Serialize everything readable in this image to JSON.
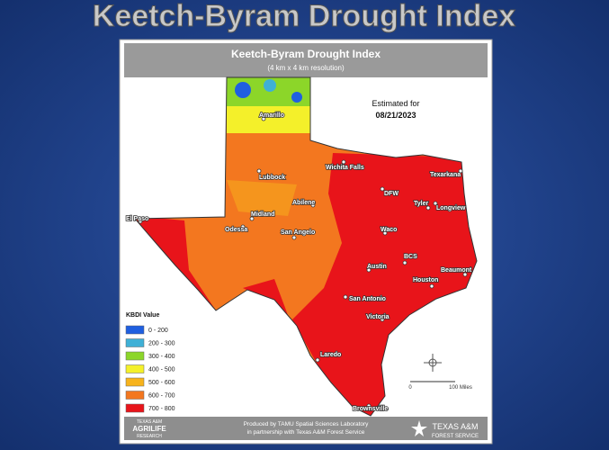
{
  "slide_title": "Keetch-Byram Drought Index",
  "map": {
    "title": "Keetch-Byram Drought Index",
    "subtitle": "(4 km x 4 km resolution)",
    "estimated_label": "Estimated for",
    "date": "08/21/2023",
    "cities": [
      "Amarillo",
      "Wichita Falls",
      "Texarkana",
      "Lubbock",
      "DFW",
      "Tyler",
      "Longview",
      "Abilene",
      "El Paso",
      "Midland",
      "Odessa",
      "San Angelo",
      "Waco",
      "BCS",
      "Austin",
      "Beaumont",
      "Houston",
      "San Antonio",
      "Victoria",
      "Laredo",
      "Brownsville"
    ],
    "legend": {
      "title": "KBDI Value",
      "items": [
        {
          "label": "0 - 200",
          "color": "#1f5fe0"
        },
        {
          "label": "200 - 300",
          "color": "#3fb0d6"
        },
        {
          "label": "300 - 400",
          "color": "#8cd629"
        },
        {
          "label": "400 - 500",
          "color": "#f4f02a"
        },
        {
          "label": "500 - 600",
          "color": "#f7b31c"
        },
        {
          "label": "600 - 700",
          "color": "#f3771f"
        },
        {
          "label": "700 - 800",
          "color": "#e8141a"
        }
      ]
    },
    "scale": {
      "start": "0",
      "end": "100 Miles"
    }
  },
  "footer": {
    "line1": "Produced by TAMU Spatial Sciences Laboratory",
    "line2": "in partnership with Texas A&M Forest Service",
    "left_logo": [
      "TEXAS A&M",
      "AGRILIFE",
      "RESEARCH"
    ],
    "right_logo": [
      "TEXAS A&M",
      "FOREST SERVICE"
    ]
  }
}
